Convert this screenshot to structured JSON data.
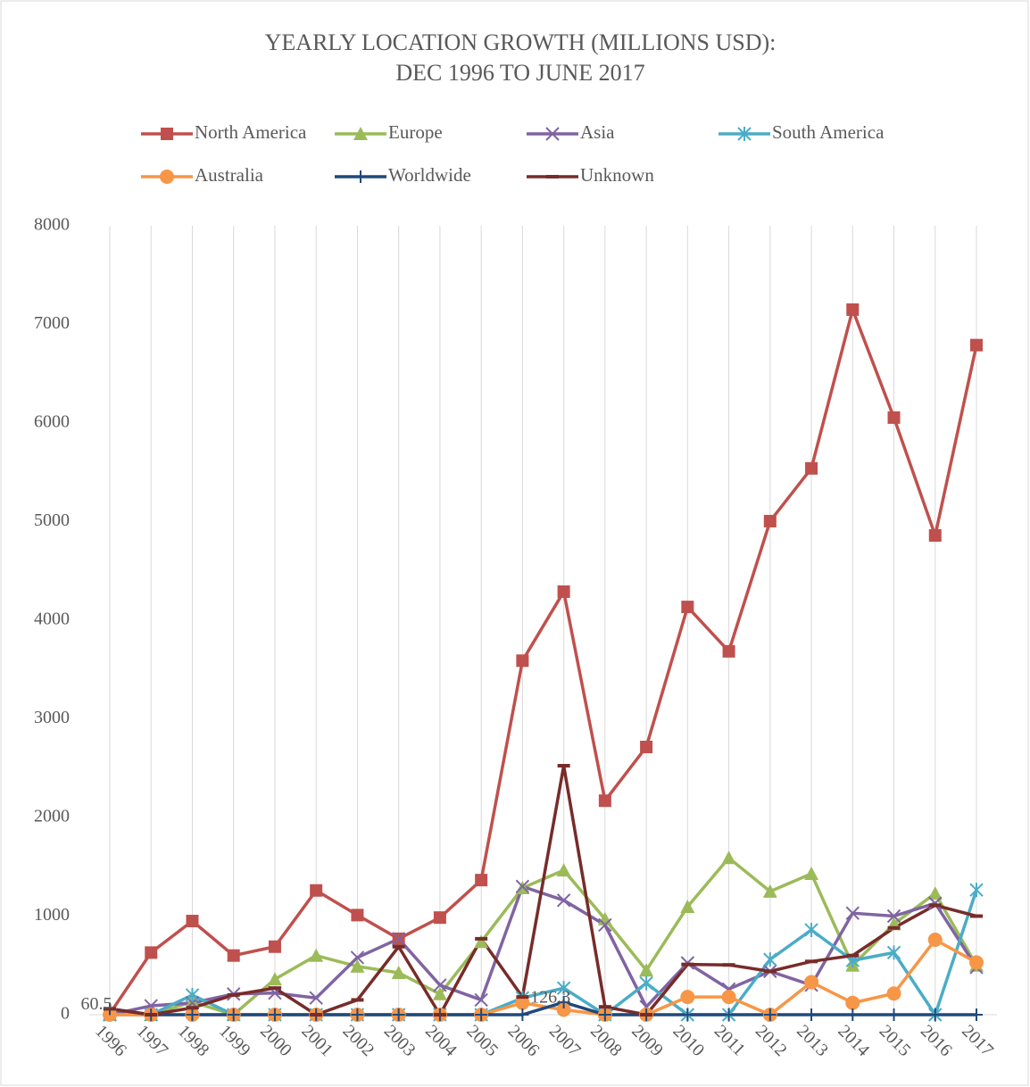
{
  "chart_data": {
    "type": "line",
    "title": [
      "YEARLY LOCATION GROWTH (MILLIONS USD):",
      "DEC 1996 TO JUNE 2017"
    ],
    "categories": [
      "1996",
      "1997",
      "1998",
      "1999",
      "2000",
      "2001",
      "2002",
      "2003",
      "2004",
      "2005",
      "2006",
      "2007",
      "2008",
      "2009",
      "2010",
      "2011",
      "2012",
      "2013",
      "2014",
      "2015",
      "2016",
      "2017"
    ],
    "ylim": [
      0,
      8000
    ],
    "yticks": [
      0,
      1000,
      2000,
      3000,
      4000,
      5000,
      6000,
      7000,
      8000
    ],
    "grid": "vertical",
    "legend": "top",
    "series": [
      {
        "name": "North America",
        "color": "#c0504d",
        "marker": "square",
        "values": [
          10,
          630,
          950,
          600,
          690,
          1260,
          1010,
          770,
          985,
          1365,
          3590,
          4290,
          2170,
          2715,
          4135,
          3685,
          5005,
          5540,
          7150,
          6055,
          4860,
          6790
        ]
      },
      {
        "name": "Europe",
        "color": "#9bbb59",
        "marker": "triangle",
        "values": [
          0,
          0,
          130,
          0,
          360,
          600,
          490,
          425,
          210,
          740,
          1285,
          1465,
          970,
          450,
          1095,
          1590,
          1250,
          1430,
          500,
          920,
          1230,
          500
        ]
      },
      {
        "name": "Asia",
        "color": "#8064a2",
        "marker": "x",
        "values": [
          0,
          90,
          120,
          210,
          220,
          170,
          580,
          770,
          300,
          150,
          1300,
          1160,
          910,
          80,
          525,
          260,
          440,
          300,
          1030,
          1000,
          1130,
          480
        ]
      },
      {
        "name": "South America",
        "color": "#4bacc6",
        "marker": "star",
        "values": [
          0,
          0,
          200,
          0,
          0,
          0,
          0,
          0,
          0,
          0,
          170,
          270,
          0,
          320,
          0,
          0,
          560,
          860,
          550,
          630,
          0,
          1265
        ]
      },
      {
        "name": "Australia",
        "color": "#f79646",
        "marker": "circle",
        "values": [
          0,
          0,
          0,
          0,
          0,
          0,
          0,
          0,
          0,
          0,
          120,
          50,
          0,
          0,
          180,
          180,
          0,
          330,
          120,
          215,
          760,
          530
        ]
      },
      {
        "name": "Worldwide",
        "color": "#1f497d",
        "marker": "plus",
        "values": [
          60.5,
          0,
          0,
          0,
          0,
          0,
          0,
          0,
          0,
          0,
          0,
          126.3,
          0,
          0,
          0,
          0,
          0,
          0,
          0,
          0,
          0,
          0
        ],
        "value_labels": [
          "60.5",
          null,
          null,
          null,
          null,
          null,
          null,
          null,
          null,
          null,
          null,
          "126.3",
          null,
          null,
          null,
          null,
          null,
          null,
          null,
          null,
          null,
          null
        ]
      },
      {
        "name": "Unknown",
        "color": "#772c2a",
        "marker": "dash",
        "values": [
          60,
          0,
          70,
          200,
          270,
          0,
          150,
          690,
          0,
          770,
          180,
          2525,
          80,
          0,
          510,
          505,
          440,
          540,
          600,
          880,
          1110,
          1000
        ]
      }
    ]
  }
}
